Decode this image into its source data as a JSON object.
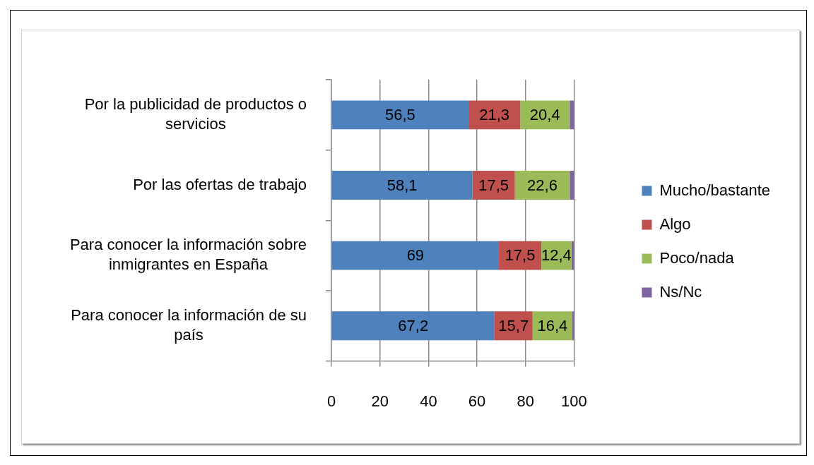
{
  "chart_data": {
    "type": "bar",
    "orientation": "horizontal",
    "stacked": true,
    "categories": [
      "Por la publicidad de productos o servicios",
      "Por las ofertas de trabajo",
      "Para conocer la información sobre inmigrantes en España",
      "Para conocer la información de su país"
    ],
    "series": [
      {
        "name": "Mucho/bastante",
        "color": "#4f81bd",
        "values": [
          56.5,
          58.1,
          69,
          67.2
        ],
        "value_labels": [
          "56,5",
          "58,1",
          "69",
          "67,2"
        ]
      },
      {
        "name": "Algo",
        "color": "#c0504d",
        "values": [
          21.3,
          17.5,
          17.5,
          15.7
        ],
        "value_labels": [
          "21,3",
          "17,5",
          "17,5",
          "15,7"
        ]
      },
      {
        "name": "Poco/nada",
        "color": "#9bbb59",
        "values": [
          20.4,
          22.6,
          12.4,
          16.4
        ],
        "value_labels": [
          "20,4",
          "22,6",
          "12,4",
          "16,4"
        ]
      },
      {
        "name": "Ns/Nc",
        "color": "#8064a2",
        "values": [
          1.8,
          1.8,
          1.1,
          0.7
        ]
      }
    ],
    "xlim": [
      0,
      100
    ],
    "xticks": [
      0,
      20,
      40,
      60,
      80,
      100
    ],
    "grid": "x",
    "legend": "right"
  }
}
